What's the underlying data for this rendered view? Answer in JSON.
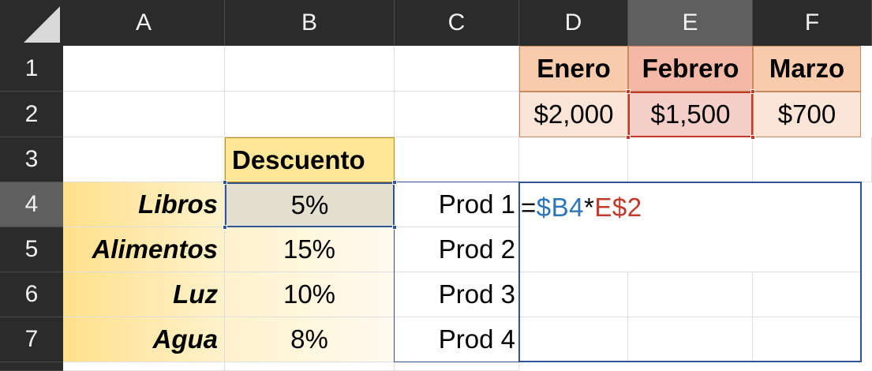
{
  "columns": [
    "A",
    "B",
    "C",
    "D",
    "E",
    "F"
  ],
  "rows": [
    "1",
    "2",
    "3",
    "4",
    "5",
    "6",
    "7"
  ],
  "months": {
    "headers": [
      "Enero",
      "Febrero",
      "Marzo"
    ],
    "values": [
      "$2,000",
      "$1,500",
      "$700"
    ]
  },
  "discount_header": "Descuento",
  "categories": [
    "Libros",
    "Alimentos",
    "Luz",
    "Agua"
  ],
  "discounts": [
    "5%",
    "15%",
    "10%",
    "8%"
  ],
  "products": [
    "Prod 1",
    "Prod 2",
    "Prod 3",
    "Prod 4"
  ],
  "formula": {
    "eq": "=",
    "ref1": "$B4",
    "op": "*",
    "ref2": "E$2"
  },
  "colors": {
    "ref1": "#2e75b6",
    "ref2": "#c0392b",
    "header_bg": "#2b2b2b"
  }
}
